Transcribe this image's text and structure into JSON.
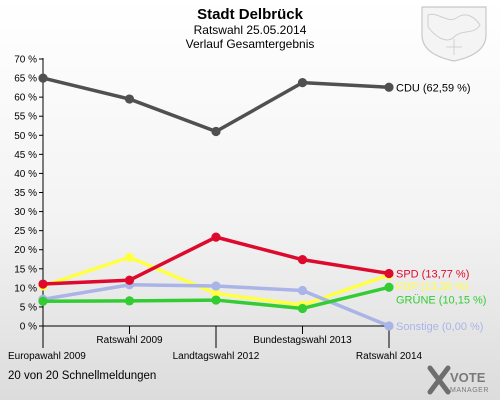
{
  "chart_data": {
    "type": "line",
    "title": "Stadt Delbrück",
    "subtitle_1": "Ratswahl 25.05.2014",
    "subtitle_2": "Verlauf Gesamtergebnis",
    "categories": [
      "Europawahl 2009",
      "Ratswahl 2009",
      "Landtagswahl 2012",
      "Bundestagswahl 2013",
      "Ratswahl 2014"
    ],
    "ylim": [
      0,
      70
    ],
    "yticks": [
      "0 %",
      "5 %",
      "10 %",
      "15 %",
      "20 %",
      "25 %",
      "30 %",
      "35 %",
      "40 %",
      "45 %",
      "50 %",
      "55 %",
      "60 %",
      "65 %",
      "70 %"
    ],
    "grid": false,
    "series": [
      {
        "name": "CDU",
        "label": "CDU (62,59 %)",
        "color": "#505050",
        "label_color": "#000000",
        "values": [
          65.0,
          59.5,
          51.0,
          63.8,
          62.59
        ]
      },
      {
        "name": "FDP",
        "label": "FDP (13,38 %)",
        "color": "#ffff44",
        "label_color": "#ffff44",
        "values": [
          10.5,
          18.0,
          8.5,
          5.5,
          13.38
        ]
      },
      {
        "name": "Sonstige",
        "label": "Sonstige (0,00 %)",
        "color": "#aab4e6",
        "label_color": "#aab4e6",
        "values": [
          7.0,
          10.8,
          10.5,
          9.3,
          0.0
        ]
      },
      {
        "name": "SPD",
        "label": "SPD (13,77 %)",
        "color": "#dd0a2e",
        "label_color": "#dd0a2e",
        "values": [
          11.0,
          12.0,
          23.3,
          17.4,
          13.77
        ]
      },
      {
        "name": "GRÜNE",
        "label": "GRÜNE (10,15 %)",
        "color": "#33cc33",
        "label_color": "#33cc33",
        "values": [
          6.5,
          6.6,
          6.8,
          4.6,
          10.15
        ]
      }
    ]
  },
  "footer": {
    "text": "20 von 20 Schnellmeldungen"
  },
  "logo": {
    "line1": "VOTE",
    "line2": "MANAGER"
  }
}
